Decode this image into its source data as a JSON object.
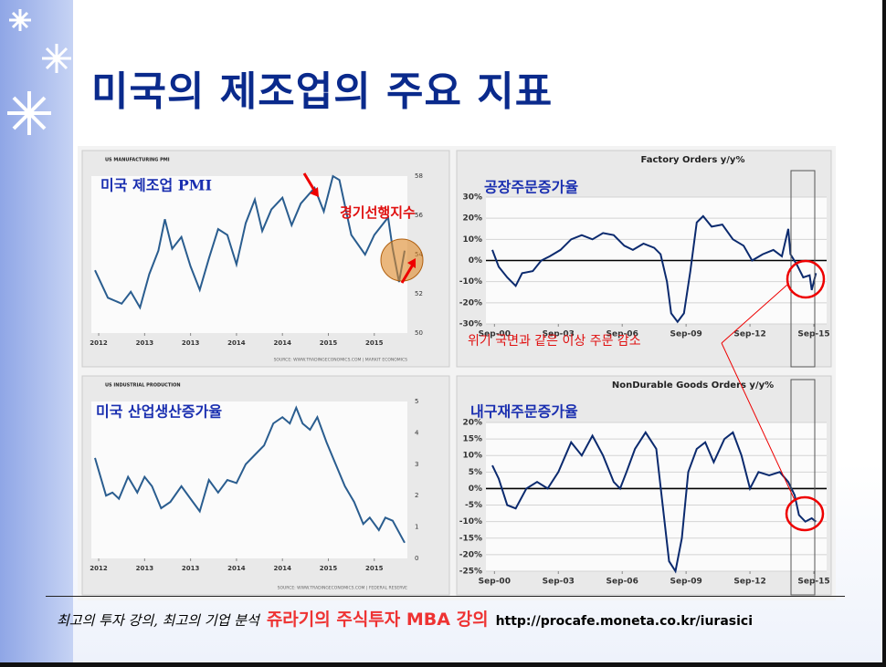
{
  "title": "미국의 제조업의 주요 지표",
  "annotation": "위기 국면과 같은 이상 주문 감소",
  "footer": {
    "tagline": "최고의 투자 강의, 최고의 기업 분석",
    "brand": "쥬라기의 주식투자 MBA 강의",
    "url": "http://procafe.moneta.co.kr/iurasici"
  },
  "chart_data": [
    {
      "type": "line",
      "title": "US MANUFACTURING PMI",
      "annotation": "미국 제조업 PMI",
      "annotation2": "경기선행지수",
      "source": "SOURCE: WWW.TRADINGECONOMICS.COM | MARKIT ECONOMICS",
      "yaxis": "right",
      "grid": false,
      "xlim": [
        2011.92,
        2015.36
      ],
      "ylim": [
        50,
        58
      ],
      "yticks": [
        50,
        52,
        54,
        56,
        58
      ],
      "xticks": [
        {
          "value": 2012.0,
          "label": "2012"
        },
        {
          "value": 2012.5,
          "label": "2013"
        },
        {
          "value": 2013.0,
          "label": "2013"
        },
        {
          "value": 2013.5,
          "label": "2014"
        },
        {
          "value": 2014.0,
          "label": "2014"
        },
        {
          "value": 2014.5,
          "label": "2015"
        },
        {
          "value": 2015.0,
          "label": "2015"
        }
      ],
      "x": [
        2011.96,
        2012.1,
        2012.25,
        2012.35,
        2012.45,
        2012.55,
        2012.65,
        2012.72,
        2012.8,
        2012.9,
        2013.0,
        2013.1,
        2013.2,
        2013.3,
        2013.4,
        2013.5,
        2013.6,
        2013.7,
        2013.78,
        2013.88,
        2014.0,
        2014.1,
        2014.2,
        2014.35,
        2014.45,
        2014.55,
        2014.62,
        2014.75,
        2014.9,
        2015.0,
        2015.15,
        2015.2,
        2015.27,
        2015.33
      ],
      "series": [
        {
          "color": "#2a5d8f",
          "values": [
            53.2,
            51.8,
            51.5,
            52.1,
            51.3,
            53.0,
            54.2,
            55.8,
            54.3,
            54.9,
            53.4,
            52.2,
            53.8,
            55.3,
            55.0,
            53.5,
            55.6,
            56.8,
            55.2,
            56.3,
            56.9,
            55.5,
            56.6,
            57.4,
            56.2,
            58.0,
            57.8,
            55.0,
            54.0,
            55.0,
            55.9,
            54.3,
            52.6,
            54.2
          ]
        }
      ]
    },
    {
      "type": "line",
      "title": "Factory Orders y/y%",
      "annotation": "공장주문증가율",
      "yaxis": "left",
      "grid": true,
      "xlim": [
        2000.3,
        2016.3
      ],
      "ylim": [
        -30,
        30
      ],
      "yticks": [
        {
          "value": -30,
          "label": "-30%"
        },
        {
          "value": -20,
          "label": "-20%"
        },
        {
          "value": -10,
          "label": "-10%"
        },
        {
          "value": 0,
          "label": "0%"
        },
        {
          "value": 10,
          "label": "10%"
        },
        {
          "value": 20,
          "label": "20%"
        },
        {
          "value": 30,
          "label": "30%"
        }
      ],
      "xticks": [
        {
          "value": 2000.7,
          "label": "Sep-00"
        },
        {
          "value": 2003.7,
          "label": "Sep-03"
        },
        {
          "value": 2006.7,
          "label": "Sep-06"
        },
        {
          "value": 2009.7,
          "label": "Sep-09"
        },
        {
          "value": 2012.7,
          "label": "Sep-12"
        },
        {
          "value": 2015.7,
          "label": "Sep-15"
        }
      ],
      "x": [
        2000.6,
        2000.9,
        2001.3,
        2001.7,
        2002.0,
        2002.5,
        2002.9,
        2003.3,
        2003.8,
        2004.3,
        2004.8,
        2005.3,
        2005.8,
        2006.3,
        2006.8,
        2007.2,
        2007.7,
        2008.2,
        2008.5,
        2008.8,
        2009.0,
        2009.3,
        2009.6,
        2009.9,
        2010.2,
        2010.5,
        2010.9,
        2011.4,
        2011.9,
        2012.4,
        2012.8,
        2013.3,
        2013.8,
        2014.2,
        2014.5,
        2014.6,
        2014.9,
        2015.2,
        2015.5,
        2015.6,
        2015.8
      ],
      "series": [
        {
          "color": "#0b2a6e",
          "values": [
            5,
            -3,
            -8,
            -12,
            -6,
            -5,
            0,
            2,
            5,
            10,
            12,
            10,
            13,
            12,
            7,
            5,
            8,
            6,
            3,
            -10,
            -25,
            -29,
            -25,
            -5,
            18,
            21,
            16,
            17,
            10,
            7,
            0,
            3,
            5,
            2,
            15,
            3,
            -2,
            -8,
            -7,
            -14,
            -6
          ]
        }
      ]
    },
    {
      "type": "line",
      "title": "US INDUSTRIAL PRODUCTION",
      "annotation": "미국 산업생산증가율",
      "source": "SOURCE: WWW.TRADINGECONOMICS.COM | FEDERAL RESERVE",
      "yaxis": "right",
      "grid": false,
      "xlim": [
        2011.92,
        2015.36
      ],
      "ylim": [
        0,
        5
      ],
      "yticks": [
        0,
        1,
        2,
        3,
        4,
        5
      ],
      "xticks": [
        {
          "value": 2012.0,
          "label": "2012"
        },
        {
          "value": 2012.5,
          "label": "2013"
        },
        {
          "value": 2013.0,
          "label": "2013"
        },
        {
          "value": 2013.5,
          "label": "2014"
        },
        {
          "value": 2014.0,
          "label": "2014"
        },
        {
          "value": 2014.5,
          "label": "2015"
        },
        {
          "value": 2015.0,
          "label": "2015"
        }
      ],
      "x": [
        2011.96,
        2012.08,
        2012.15,
        2012.22,
        2012.32,
        2012.42,
        2012.5,
        2012.58,
        2012.68,
        2012.78,
        2012.9,
        2013.0,
        2013.1,
        2013.2,
        2013.3,
        2013.4,
        2013.5,
        2013.6,
        2013.7,
        2013.8,
        2013.9,
        2014.0,
        2014.08,
        2014.15,
        2014.22,
        2014.3,
        2014.38,
        2014.48,
        2014.58,
        2014.68,
        2014.78,
        2014.88,
        2014.95,
        2015.05,
        2015.12,
        2015.2,
        2015.33
      ],
      "series": [
        {
          "color": "#2a5d8f",
          "values": [
            3.2,
            2.0,
            2.1,
            1.9,
            2.6,
            2.1,
            2.6,
            2.3,
            1.6,
            1.8,
            2.3,
            1.9,
            1.5,
            2.5,
            2.1,
            2.5,
            2.4,
            3.0,
            3.3,
            3.6,
            4.3,
            4.5,
            4.3,
            4.8,
            4.3,
            4.1,
            4.5,
            3.7,
            3.0,
            2.3,
            1.8,
            1.1,
            1.3,
            0.9,
            1.3,
            1.2,
            0.5
          ]
        }
      ]
    },
    {
      "type": "line",
      "title": "NonDurable Goods Orders y/y%",
      "annotation": "내구재주문증가율",
      "yaxis": "left",
      "grid": true,
      "xlim": [
        2000.3,
        2016.3
      ],
      "ylim": [
        -25,
        20
      ],
      "yticks": [
        {
          "value": -25,
          "label": "-25%"
        },
        {
          "value": -20,
          "label": "-20%"
        },
        {
          "value": -15,
          "label": "-15%"
        },
        {
          "value": -10,
          "label": "-10%"
        },
        {
          "value": -5,
          "label": "-5%"
        },
        {
          "value": 0,
          "label": "0%"
        },
        {
          "value": 5,
          "label": "5%"
        },
        {
          "value": 10,
          "label": "10%"
        },
        {
          "value": 15,
          "label": "15%"
        },
        {
          "value": 20,
          "label": "20%"
        }
      ],
      "xticks": [
        {
          "value": 2000.7,
          "label": "Sep-00"
        },
        {
          "value": 2003.7,
          "label": "Sep-03"
        },
        {
          "value": 2006.7,
          "label": "Sep-06"
        },
        {
          "value": 2009.7,
          "label": "Sep-09"
        },
        {
          "value": 2012.7,
          "label": "Sep-12"
        },
        {
          "value": 2015.7,
          "label": "Sep-15"
        }
      ],
      "x": [
        2000.6,
        2000.9,
        2001.3,
        2001.7,
        2002.2,
        2002.7,
        2003.2,
        2003.7,
        2004.3,
        2004.8,
        2005.3,
        2005.8,
        2006.3,
        2006.6,
        2006.9,
        2007.3,
        2007.8,
        2008.3,
        2008.6,
        2008.9,
        2009.2,
        2009.5,
        2009.8,
        2010.2,
        2010.6,
        2011.0,
        2011.5,
        2011.9,
        2012.3,
        2012.7,
        2013.1,
        2013.6,
        2014.1,
        2014.5,
        2014.8,
        2015.0,
        2015.3,
        2015.6,
        2015.8
      ],
      "series": [
        {
          "color": "#0b2a6e",
          "values": [
            7,
            3,
            -5,
            -6,
            0,
            2,
            0,
            5,
            14,
            10,
            16,
            10,
            2,
            0,
            5,
            12,
            17,
            12,
            -5,
            -22,
            -25,
            -15,
            5,
            12,
            14,
            8,
            15,
            17,
            10,
            0,
            5,
            4,
            5,
            2,
            -2,
            -8,
            -10,
            -9,
            -10
          ]
        }
      ]
    }
  ]
}
